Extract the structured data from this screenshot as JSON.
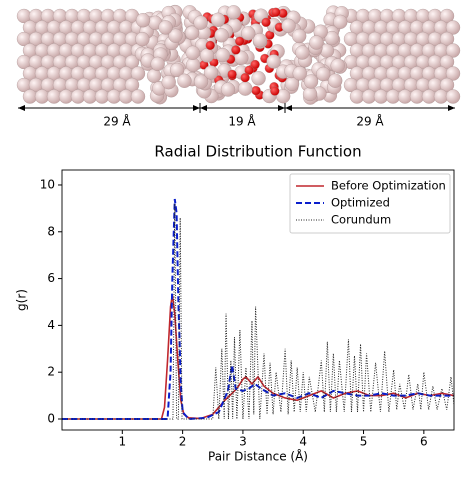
{
  "image_labels": [
    "29 Å",
    "19 Å",
    "29 Å"
  ],
  "chart_data": {
    "type": "line",
    "title": "Radial Distribution Function",
    "xlabel": "Pair Distance (Å)",
    "ylabel": "g(r)",
    "xlim": [
      0,
      6.5
    ],
    "ylim": [
      -0.47,
      10.64
    ],
    "xticks": [
      1,
      2,
      3,
      4,
      5,
      6
    ],
    "yticks": [
      0,
      2,
      4,
      6,
      8,
      10
    ],
    "legend": "upper right",
    "series": [
      {
        "name": "Before Optimization",
        "color": "#c0272d",
        "style": "solid",
        "x": [
          0,
          1.65,
          1.7,
          1.75,
          1.8,
          1.83,
          1.87,
          1.92,
          1.97,
          2.02,
          2.1,
          2.3,
          2.5,
          2.7,
          2.9,
          3.0,
          3.05,
          3.15,
          3.25,
          3.35,
          3.5,
          3.7,
          3.9,
          4.1,
          4.3,
          4.5,
          4.7,
          4.9,
          5.1,
          5.3,
          5.5,
          5.7,
          5.9,
          6.1,
          6.3,
          6.5
        ],
        "values": [
          0,
          0,
          0.5,
          2.5,
          4.8,
          5.3,
          4.5,
          2.5,
          0.8,
          0.2,
          0.05,
          0.02,
          0.2,
          0.8,
          1.3,
          1.7,
          1.8,
          1.5,
          1.8,
          1.4,
          1.1,
          0.9,
          0.8,
          1.0,
          1.2,
          0.9,
          1.1,
          1.2,
          1.0,
          1.0,
          1.1,
          0.9,
          1.1,
          1.0,
          1.1,
          1.0
        ]
      },
      {
        "name": "Optimized",
        "color": "#0a1fcc",
        "style": "dashed",
        "x": [
          0,
          1.75,
          1.8,
          1.83,
          1.87,
          1.9,
          1.93,
          1.97,
          2.0,
          2.1,
          2.4,
          2.6,
          2.75,
          2.82,
          2.88,
          3.0,
          3.1,
          3.2,
          3.3,
          3.5,
          3.7,
          3.9,
          4.1,
          4.3,
          4.5,
          4.7,
          4.9,
          5.1,
          5.3,
          5.5,
          5.7,
          5.9,
          6.1,
          6.3,
          6.5
        ],
        "values": [
          0,
          0,
          2,
          6,
          9.4,
          8.8,
          5,
          1.5,
          0.3,
          0,
          0.05,
          0.3,
          1.2,
          2.3,
          1.3,
          1.2,
          1.3,
          1.5,
          1.3,
          1.0,
          1.1,
          0.9,
          1.1,
          0.9,
          1.2,
          1.1,
          1.0,
          1.0,
          1.1,
          1.0,
          1.0,
          1.1,
          1.0,
          1.0,
          1.0
        ]
      },
      {
        "name": "Corundum",
        "color": "#222222",
        "style": "dotted",
        "x": [
          0,
          1.84,
          1.87,
          1.9,
          1.93,
          1.96,
          1.99,
          2.5,
          2.55,
          2.6,
          2.65,
          2.69,
          2.72,
          2.76,
          2.8,
          2.83,
          2.86,
          2.9,
          2.95,
          3.0,
          3.05,
          3.1,
          3.15,
          3.18,
          3.21,
          3.28,
          3.35,
          3.4,
          3.45,
          3.5,
          3.55,
          3.63,
          3.7,
          3.75,
          3.8,
          3.85,
          3.9,
          3.95,
          4.0,
          4.05,
          4.1,
          4.2,
          4.3,
          4.35,
          4.4,
          4.45,
          4.5,
          4.55,
          4.6,
          4.68,
          4.75,
          4.8,
          4.85,
          4.9,
          4.95,
          5.0,
          5.05,
          5.12,
          5.2,
          5.28,
          5.35,
          5.42,
          5.5,
          5.55,
          5.6,
          5.68,
          5.75,
          5.82,
          5.9,
          5.95,
          6.0,
          6.08,
          6.15,
          6.22,
          6.3,
          6.38,
          6.45,
          6.5
        ],
        "values": [
          0,
          0,
          9.2,
          0,
          0,
          8.6,
          0,
          0,
          2.2,
          0,
          3.0,
          0,
          4.5,
          0,
          2.5,
          0,
          3.5,
          0,
          3.8,
          0,
          2.2,
          0,
          4.2,
          0.2,
          4.8,
          0,
          2.8,
          0.2,
          2.4,
          0.2,
          2.0,
          0.3,
          3.0,
          0.2,
          2.5,
          0.3,
          2.2,
          0.3,
          2.0,
          0.3,
          1.8,
          0.3,
          2.5,
          0.3,
          3.3,
          0.3,
          2.8,
          0.3,
          2.5,
          0.3,
          3.4,
          0.3,
          2.7,
          0.3,
          3.2,
          0.3,
          2.8,
          0.3,
          2.4,
          0.3,
          2.9,
          0.3,
          2.1,
          0.4,
          1.5,
          0.4,
          1.9,
          0.4,
          1.5,
          0.4,
          2.0,
          0.4,
          1.4,
          0.4,
          1.3,
          0.4,
          1.8,
          0.6
        ]
      }
    ]
  }
}
